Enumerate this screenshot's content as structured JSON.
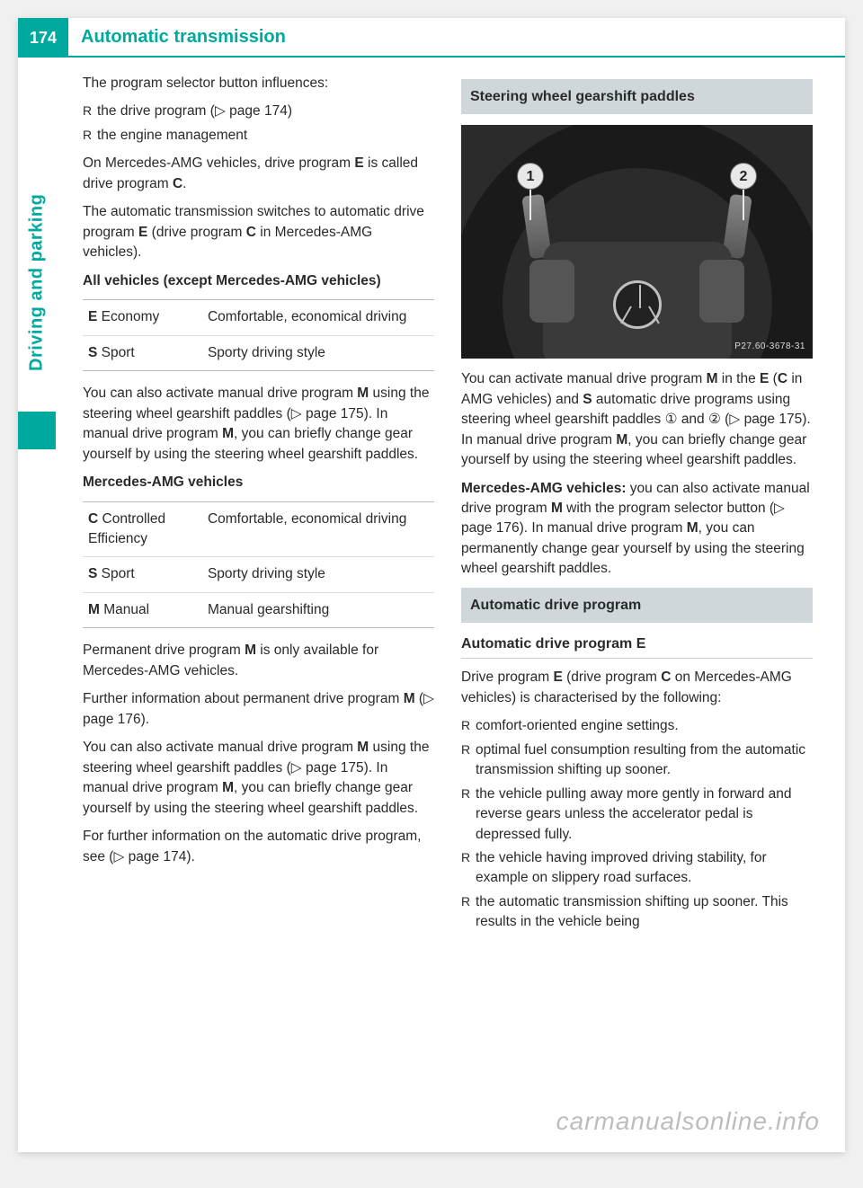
{
  "page_number": "174",
  "header_title": "Automatic transmission",
  "side_label": "Driving and parking",
  "watermark": "carmanualsonline.info",
  "colors": {
    "accent": "#00a99d",
    "heading_bg": "#d0d7da",
    "text": "#2a2a2a",
    "border": "#bbbbbb",
    "page_bg": "#ffffff",
    "outer_bg": "#f0f0f0"
  },
  "col1": {
    "intro": "The program selector button influences:",
    "bullets1": [
      "the drive program (▷ page 174)",
      "the engine management"
    ],
    "p_amg_e": [
      "On Mercedes-AMG vehicles, drive program ",
      "E",
      " is called drive program ",
      "C",
      "."
    ],
    "p_auto_switch": [
      "The automatic transmission switches to automatic drive program ",
      "E",
      " (drive program ",
      "C",
      " in Mercedes-AMG vehicles)."
    ],
    "heading_all": "All vehicles (except Mercedes-AMG vehicles)",
    "table1": {
      "rows": [
        {
          "code": "E",
          "label": " Economy",
          "desc": "Comfortable, economical driving"
        },
        {
          "code": "S",
          "label": " Sport",
          "desc": "Sporty driving style"
        }
      ]
    },
    "p_manual1": [
      "You can also activate manual drive program ",
      "M",
      " using the steering wheel gearshift paddles (▷ page 175). In manual drive program ",
      "M",
      ", you can briefly change gear yourself by using the steering wheel gearshift paddles."
    ],
    "heading_amg": "Mercedes-AMG vehicles",
    "table2": {
      "rows": [
        {
          "code": "C",
          "label": " Controlled Efficiency",
          "desc": "Comfortable, economical driving"
        },
        {
          "code": "S",
          "label": " Sport",
          "desc": "Sporty driving style"
        },
        {
          "code": "M",
          "label": " Manual",
          "desc": "Manual gearshifting"
        }
      ]
    },
    "p_permanent": [
      "Permanent drive program ",
      "M",
      " is only available for Mercedes-AMG vehicles."
    ],
    "p_further": [
      "Further information about permanent drive program ",
      "M",
      " (▷ page 176)."
    ],
    "p_manual2": [
      "You can also activate manual drive program ",
      "M",
      " using the steering wheel gearshift paddles (▷ page 175). In manual drive program ",
      "M",
      ", you can briefly change gear yourself by using the steering wheel gearshift paddles."
    ],
    "p_seefurther": "For further information on the automatic drive program, see (▷ page 174)."
  },
  "col2": {
    "heading_paddles": "Steering wheel gearshift paddles",
    "figure": {
      "callout1": "1",
      "callout2": "2",
      "code": "P27.60-3678-31"
    },
    "p_paddles1": [
      "You can activate manual drive program ",
      "M",
      " in the ",
      "E",
      " (",
      "C",
      " in AMG vehicles) and ",
      "S",
      " automatic drive programs using steering wheel gearshift paddles ① and ② (▷ page 175). In manual drive program ",
      "M",
      ", you can briefly change gear yourself by using the steering wheel gearshift paddles."
    ],
    "p_paddles2": [
      "Mercedes-AMG vehicles:",
      " you can also activate manual drive program ",
      "M",
      " with the program selector button (▷ page 176). In manual drive program ",
      "M",
      ", you can permanently change gear yourself by using the steering wheel gearshift paddles."
    ],
    "heading_auto": "Automatic drive program",
    "sub_auto_e": "Automatic drive program E",
    "p_auto_e": [
      "Drive program ",
      "E",
      " (drive program ",
      "C",
      " on Mercedes-AMG vehicles) is characterised by the following:"
    ],
    "bullets_auto": [
      "comfort-oriented engine settings.",
      "optimal fuel consumption resulting from the automatic transmission shifting up sooner.",
      "the vehicle pulling away more gently in forward and reverse gears unless the accelerator pedal is depressed fully.",
      "the vehicle having improved driving stability, for example on slippery road surfaces.",
      "the automatic transmission shifting up sooner. This results in the vehicle being"
    ]
  }
}
